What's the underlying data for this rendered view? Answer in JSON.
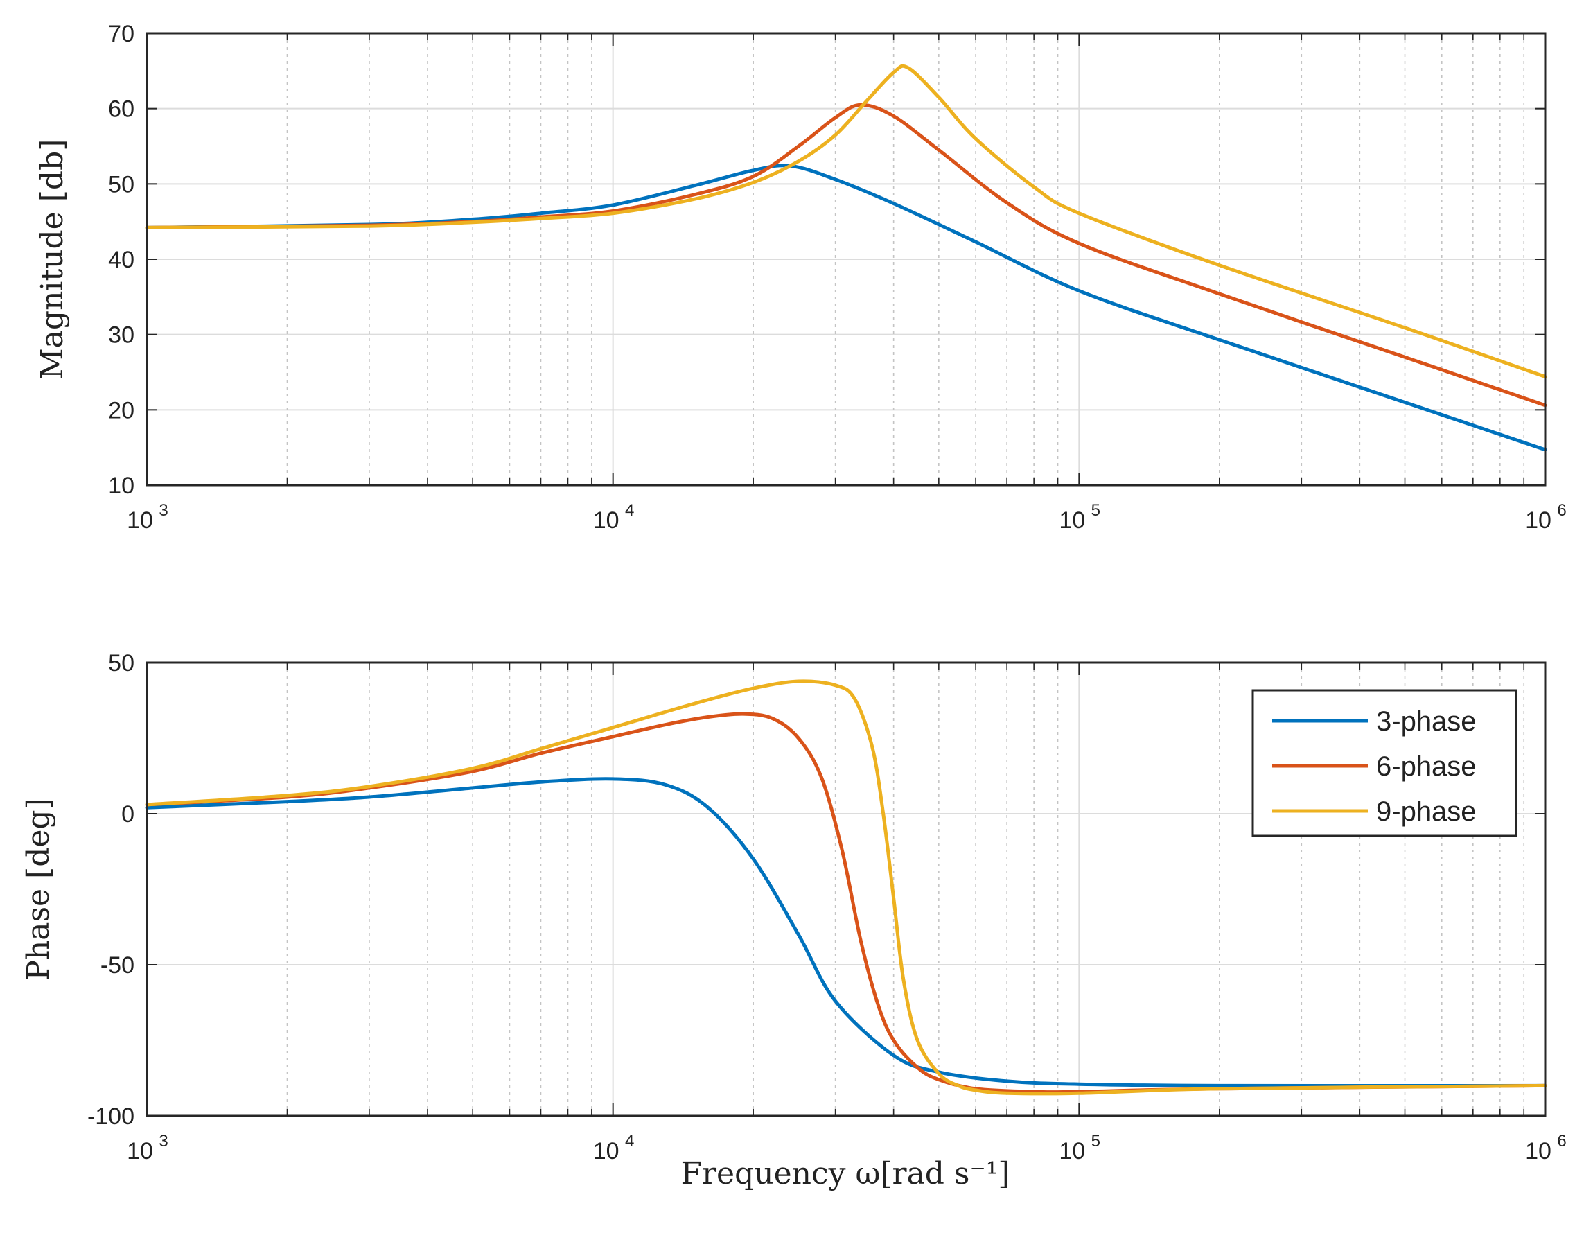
{
  "chart_data": [
    {
      "type": "line",
      "panel": "magnitude",
      "xscale": "log",
      "xlim": [
        1000,
        1000000
      ],
      "ylim": [
        10,
        70
      ],
      "yticks": [
        10,
        20,
        30,
        40,
        50,
        60,
        70
      ],
      "xtick_labels": [
        {
          "base": "10",
          "exp": "3"
        },
        {
          "base": "10",
          "exp": "4"
        },
        {
          "base": "10",
          "exp": "5"
        },
        {
          "base": "10",
          "exp": "6"
        }
      ],
      "xlabel": "",
      "ylabel": "Magnitude [db]",
      "grid": true,
      "series": [
        {
          "name": "3-phase",
          "color": "#0072BD",
          "x": [
            1000,
            3000,
            5000,
            7000,
            10000,
            15000,
            20000,
            24000,
            30000,
            40000,
            60000,
            100000,
            200000,
            500000,
            1000000
          ],
          "y": [
            44.2,
            44.6,
            45.3,
            46.1,
            47.2,
            49.8,
            51.8,
            52.4,
            50.6,
            47.4,
            42.3,
            35.8,
            29.3,
            21.0,
            14.7
          ]
        },
        {
          "name": "6-phase",
          "color": "#D95319",
          "x": [
            1000,
            3000,
            5000,
            7000,
            10000,
            15000,
            20000,
            25000,
            30000,
            34000,
            40000,
            50000,
            70000,
            100000,
            200000,
            500000,
            1000000
          ],
          "y": [
            44.2,
            44.5,
            45.0,
            45.6,
            46.4,
            48.6,
            51.0,
            55.0,
            58.8,
            60.5,
            59.0,
            54.5,
            47.5,
            42.1,
            35.4,
            27.0,
            20.6
          ]
        },
        {
          "name": "9-phase",
          "color": "#EDB120",
          "x": [
            1000,
            3000,
            5000,
            7000,
            10000,
            15000,
            20000,
            25000,
            30000,
            35000,
            40000,
            43000,
            50000,
            60000,
            80000,
            100000,
            200000,
            500000,
            1000000
          ],
          "y": [
            44.2,
            44.4,
            44.9,
            45.4,
            46.1,
            48.0,
            50.2,
            53.0,
            56.5,
            61.0,
            64.8,
            65.4,
            61.5,
            56.0,
            49.6,
            46.1,
            39.2,
            30.9,
            24.4
          ]
        }
      ]
    },
    {
      "type": "line",
      "panel": "phase",
      "xscale": "log",
      "xlim": [
        1000,
        1000000
      ],
      "ylim": [
        -100,
        50
      ],
      "yticks": [
        -100,
        -50,
        0,
        50
      ],
      "xtick_labels": [
        {
          "base": "10",
          "exp": "3"
        },
        {
          "base": "10",
          "exp": "4"
        },
        {
          "base": "10",
          "exp": "5"
        },
        {
          "base": "10",
          "exp": "6"
        }
      ],
      "xlabel": "Frequency ω[rad s⁻¹]",
      "ylabel": "Phase [deg]",
      "grid": true,
      "legend": "top-right",
      "series": [
        {
          "name": "3-phase",
          "color": "#0072BD",
          "x": [
            1000,
            2000,
            3000,
            5000,
            7000,
            10000,
            13000,
            16000,
            20000,
            25000,
            30000,
            40000,
            50000,
            70000,
            100000,
            200000,
            1000000
          ],
          "y": [
            2,
            4,
            5.5,
            8.5,
            10.5,
            11.5,
            9.5,
            2,
            -15,
            -40,
            -62,
            -80,
            -85.5,
            -88.5,
            -89.5,
            -90,
            -90
          ]
        },
        {
          "name": "6-phase",
          "color": "#D95319",
          "x": [
            1000,
            2000,
            3000,
            5000,
            7000,
            10000,
            13000,
            16000,
            19000,
            22000,
            25000,
            28000,
            31000,
            34000,
            37000,
            40000,
            45000,
            50000,
            60000,
            80000,
            100000,
            200000,
            1000000
          ],
          "y": [
            3,
            5.5,
            8.5,
            14,
            20,
            25.5,
            29.5,
            32,
            33,
            31.5,
            25,
            12,
            -12,
            -42,
            -63,
            -75,
            -84,
            -88,
            -91,
            -92,
            -92,
            -91,
            -90
          ]
        },
        {
          "name": "9-phase",
          "color": "#EDB120",
          "x": [
            1000,
            2000,
            3000,
            5000,
            7000,
            10000,
            15000,
            20000,
            25000,
            30000,
            33000,
            36000,
            38000,
            40000,
            42000,
            45000,
            50000,
            55000,
            60000,
            70000,
            100000,
            200000,
            1000000
          ],
          "y": [
            3,
            6,
            9,
            15,
            21.5,
            28.5,
            36.5,
            41.5,
            43.8,
            42.5,
            38,
            22,
            0,
            -28,
            -55,
            -75,
            -86,
            -90,
            -91.5,
            -92.5,
            -92.5,
            -91,
            -90
          ]
        }
      ]
    }
  ]
}
